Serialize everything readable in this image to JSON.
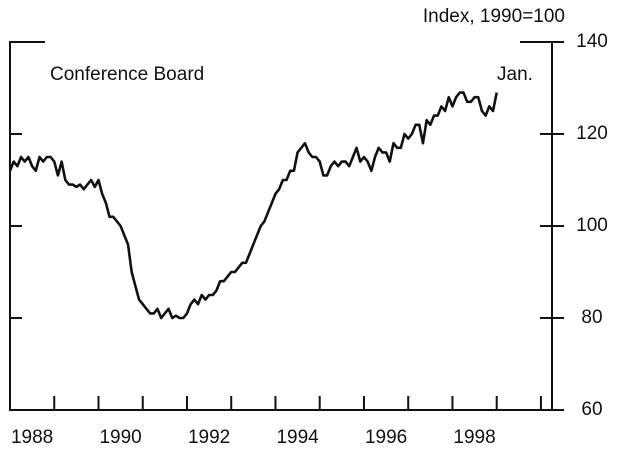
{
  "chart_data": {
    "type": "line",
    "title": "Conference Board",
    "axis_label": "Index, 1990=100",
    "annotation": "Jan.",
    "x": [
      1988.0,
      1988.083,
      1988.167,
      1988.25,
      1988.333,
      1988.417,
      1988.5,
      1988.583,
      1988.667,
      1988.75,
      1988.833,
      1988.917,
      1989.0,
      1989.083,
      1989.167,
      1989.25,
      1989.333,
      1989.417,
      1989.5,
      1989.583,
      1989.667,
      1989.75,
      1989.833,
      1989.917,
      1990.0,
      1990.083,
      1990.167,
      1990.25,
      1990.333,
      1990.417,
      1990.5,
      1990.583,
      1990.667,
      1990.75,
      1990.833,
      1990.917,
      1991.0,
      1991.083,
      1991.167,
      1991.25,
      1991.333,
      1991.417,
      1991.5,
      1991.583,
      1991.667,
      1991.75,
      1991.833,
      1991.917,
      1992.0,
      1992.083,
      1992.167,
      1992.25,
      1992.333,
      1992.417,
      1992.5,
      1992.583,
      1992.667,
      1992.75,
      1992.833,
      1992.917,
      1993.0,
      1993.083,
      1993.167,
      1993.25,
      1993.333,
      1993.417,
      1993.5,
      1993.583,
      1993.667,
      1993.75,
      1993.833,
      1993.917,
      1994.0,
      1994.083,
      1994.167,
      1994.25,
      1994.333,
      1994.417,
      1994.5,
      1994.583,
      1994.667,
      1994.75,
      1994.833,
      1994.917,
      1995.0,
      1995.083,
      1995.167,
      1995.25,
      1995.333,
      1995.417,
      1995.5,
      1995.583,
      1995.667,
      1995.75,
      1995.833,
      1995.917,
      1996.0,
      1996.083,
      1996.167,
      1996.25,
      1996.333,
      1996.417,
      1996.5,
      1996.583,
      1996.667,
      1996.75,
      1996.833,
      1996.917,
      1997.0,
      1997.083,
      1997.167,
      1997.25,
      1997.333,
      1997.417,
      1997.5,
      1997.583,
      1997.667,
      1997.75,
      1997.833,
      1997.917,
      1998.0,
      1998.083,
      1998.167,
      1998.25,
      1998.333,
      1998.417,
      1998.5,
      1998.583,
      1998.667,
      1998.75,
      1998.833,
      1998.917,
      1999.0
    ],
    "series": [
      {
        "color": "#111111",
        "values": [
          112,
          114,
          113,
          115,
          114,
          115,
          113,
          112,
          115,
          114,
          115,
          115,
          114,
          111,
          114,
          110,
          109,
          109,
          108.5,
          109,
          108,
          109,
          110,
          108.5,
          110,
          107,
          105,
          102,
          102,
          101,
          100,
          98,
          96,
          90,
          87,
          84,
          83,
          82,
          81,
          81,
          82,
          80,
          81,
          82,
          80,
          80.5,
          80,
          80,
          81,
          83,
          84,
          83,
          85,
          84,
          85,
          85,
          86,
          88,
          88,
          89,
          90,
          90,
          91,
          92,
          92,
          94,
          96,
          98,
          100,
          101,
          103,
          105,
          107,
          108,
          110,
          110,
          112,
          112,
          116,
          117,
          118,
          116,
          115,
          115,
          114,
          111,
          111,
          113,
          114,
          113,
          114,
          114,
          113,
          115,
          117,
          114,
          115,
          114,
          112,
          115,
          117,
          116,
          116,
          114,
          118,
          117,
          117,
          120,
          119,
          120,
          122,
          122,
          118,
          123,
          122,
          124,
          124,
          126,
          125,
          128,
          126,
          128,
          129,
          129,
          127,
          127,
          128,
          128,
          125,
          124,
          126,
          125,
          129
        ]
      }
    ],
    "xlim": [
      1988,
      2000.25
    ],
    "xticks": [
      1989,
      1990,
      1991,
      1992,
      1993,
      1994,
      1995,
      1996,
      1997,
      1998,
      1999,
      2000
    ],
    "xtick_labels": [
      {
        "value": 1988.5,
        "label": "1988"
      },
      {
        "value": 1990.5,
        "label": "1990"
      },
      {
        "value": 1992.5,
        "label": "1992"
      },
      {
        "value": 1994.5,
        "label": "1994"
      },
      {
        "value": 1996.5,
        "label": "1996"
      },
      {
        "value": 1998.5,
        "label": "1998"
      }
    ],
    "ylim": [
      60,
      140
    ],
    "yticks": [
      60,
      80,
      100,
      120,
      140
    ]
  }
}
